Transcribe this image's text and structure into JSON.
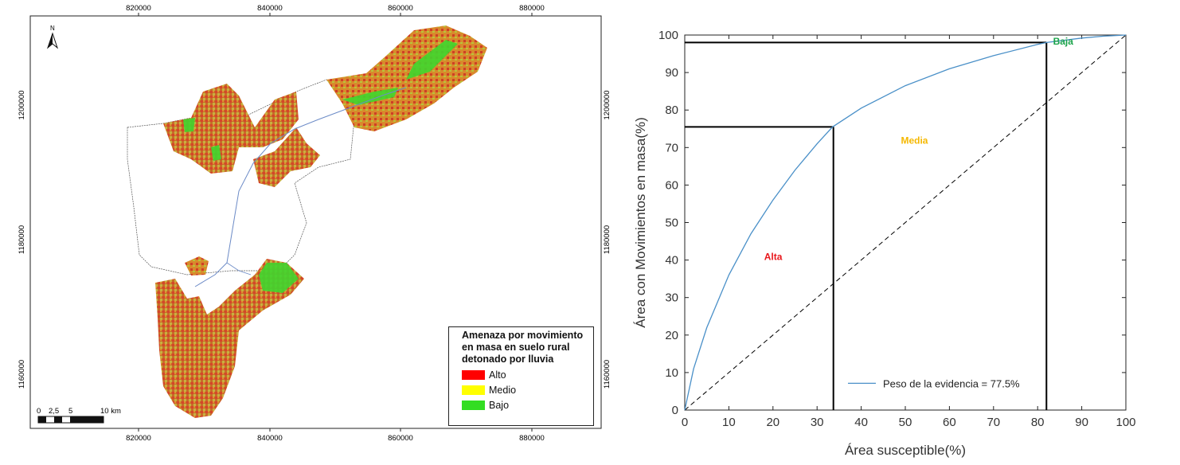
{
  "map": {
    "top_ticks": [
      "820000",
      "840000",
      "860000",
      "880000"
    ],
    "bottom_ticks": [
      "820000",
      "840000",
      "860000",
      "880000"
    ],
    "left_ticks": [
      "1200000",
      "1180000",
      "1160000"
    ],
    "right_ticks": [
      "1200000",
      "1180000",
      "1160000"
    ],
    "north_label": "N",
    "scale_labels": [
      "0",
      "2,5",
      "5",
      "10 km"
    ],
    "legend": {
      "title": "Amenaza por movimiento en masa en suelo rural detonado por lluvia",
      "items": [
        {
          "label": "Alto",
          "color": "#ff0000"
        },
        {
          "label": "Medio",
          "color": "#ffff00"
        },
        {
          "label": "Bajo",
          "color": "#33dd22"
        }
      ]
    }
  },
  "chart_data": {
    "type": "line",
    "xlabel": "Área susceptible(%)",
    "ylabel": "Área con Movimientos en masa(%)",
    "xlim": [
      0,
      100
    ],
    "ylim": [
      0,
      100
    ],
    "x_ticks": [
      0,
      10,
      20,
      30,
      40,
      50,
      60,
      70,
      80,
      90,
      100
    ],
    "y_ticks": [
      0,
      10,
      20,
      30,
      40,
      50,
      60,
      70,
      80,
      90,
      100
    ],
    "series": [
      {
        "name": "Peso de la evidencia = 77.5%",
        "color": "#4a90c8",
        "x": [
          0,
          2,
          5,
          10,
          15,
          20,
          25,
          30,
          33.5,
          40,
          50,
          60,
          70,
          80,
          82,
          90,
          95,
          100
        ],
        "y": [
          0,
          11,
          22,
          36,
          47,
          56,
          64,
          71,
          75.5,
          80.5,
          86.5,
          91,
          94.5,
          97.5,
          98,
          99.2,
          99.7,
          100
        ]
      }
    ],
    "reference_line": {
      "x": [
        0,
        100
      ],
      "y": [
        0,
        100
      ],
      "style": "dashed",
      "color": "#000000"
    },
    "threshold_lines": [
      {
        "x": 33.7,
        "y": 75.5
      },
      {
        "x": 82,
        "y": 98
      }
    ],
    "annotations": [
      {
        "text": "Alta",
        "x": 18,
        "y": 40,
        "color": "#e8161b"
      },
      {
        "text": "Media",
        "x": 49,
        "y": 71,
        "color": "#f5b800"
      },
      {
        "text": "Baja",
        "x": 83.5,
        "y": 97.5,
        "color": "#1aa34a"
      }
    ],
    "legend": {
      "label": "Peso de la evidencia = 77.5%",
      "position": "bottom-right"
    },
    "grid": false
  }
}
